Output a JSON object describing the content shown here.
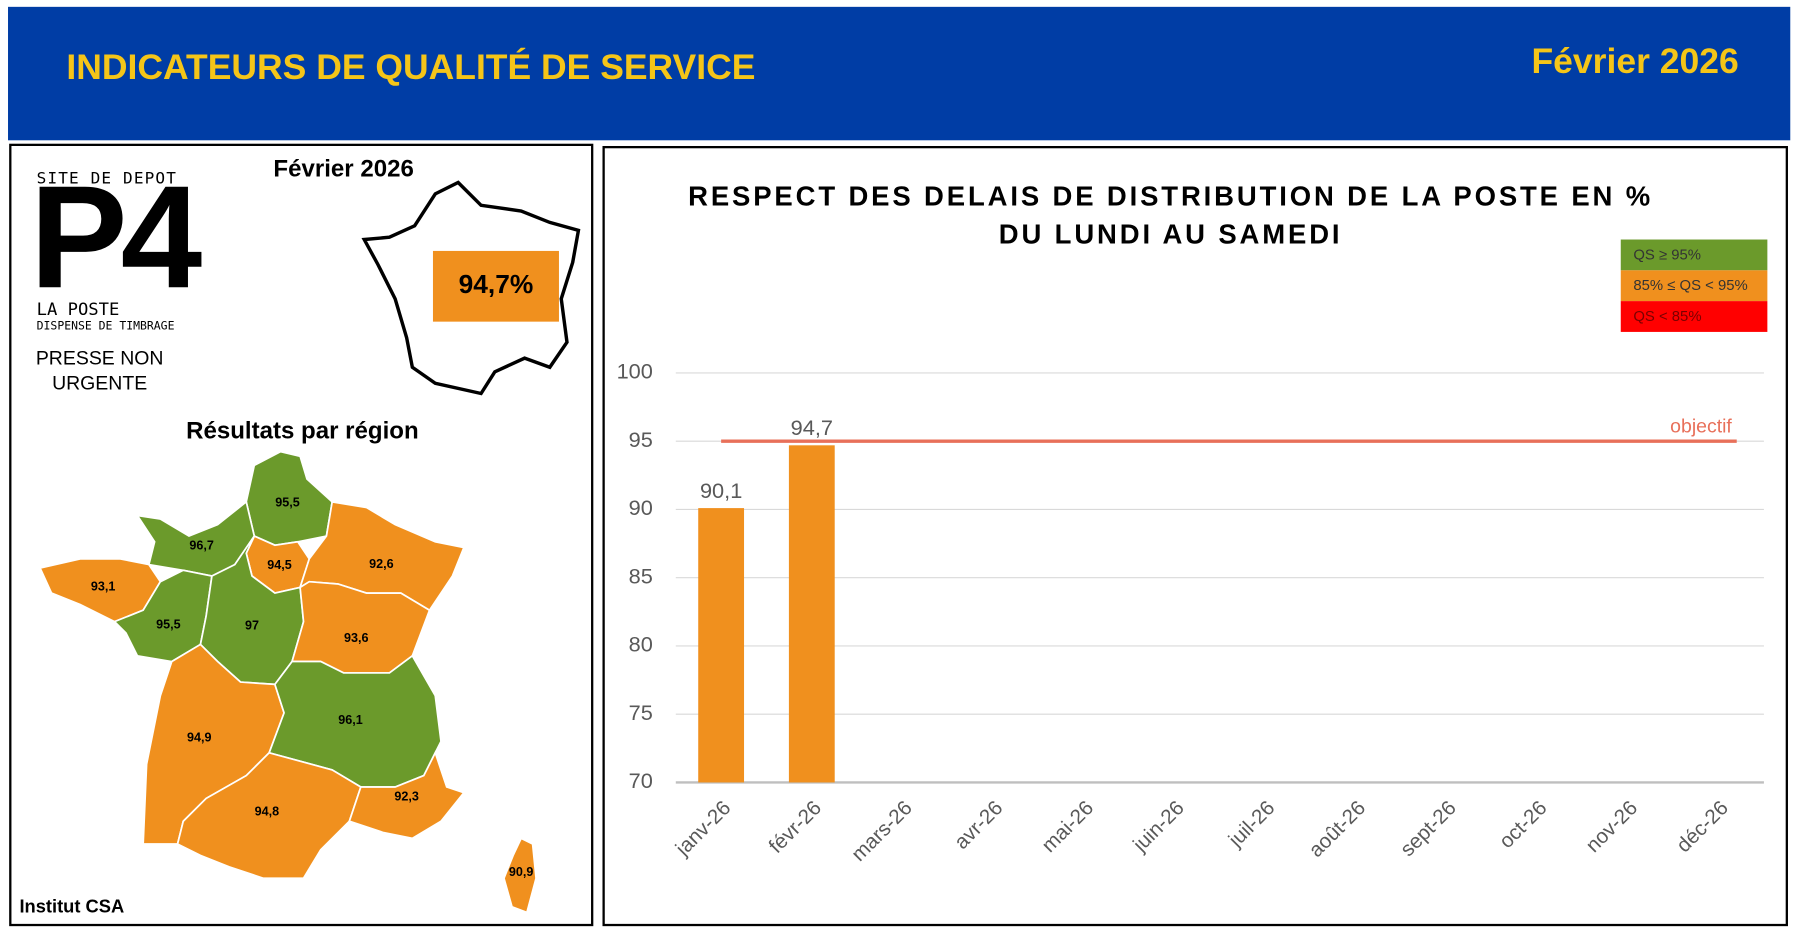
{
  "header": {
    "title": "INDICATEURS DE QUALITÉ DE SERVICE",
    "period": "Février 2026"
  },
  "left_panel": {
    "period": "Février 2026",
    "stamp": {
      "top": "SITE DE DEPOT",
      "code": "P4",
      "brand": "LA POSTE",
      "note": "DISPENSE DE TIMBRAGE"
    },
    "category": [
      "PRESSE NON",
      "URGENTE"
    ],
    "national_value": "94,7%",
    "national_color": "#f0901e",
    "regions_title": "Résultats par région",
    "regions": [
      {
        "label": "95,5",
        "color": "#6b9a2b"
      },
      {
        "label": "96,7",
        "color": "#6b9a2b"
      },
      {
        "label": "93,1",
        "color": "#f0901e"
      },
      {
        "label": "94,5",
        "color": "#f0901e"
      },
      {
        "label": "92,6",
        "color": "#f0901e"
      },
      {
        "label": "95,5",
        "color": "#6b9a2b"
      },
      {
        "label": "97",
        "color": "#6b9a2b"
      },
      {
        "label": "93,6",
        "color": "#f0901e"
      },
      {
        "label": "94,9",
        "color": "#f0901e"
      },
      {
        "label": "96,1",
        "color": "#6b9a2b"
      },
      {
        "label": "94,8",
        "color": "#f0901e"
      },
      {
        "label": "92,3",
        "color": "#f0901e"
      },
      {
        "label": "90,9",
        "color": "#f0901e"
      }
    ],
    "source": "Institut CSA"
  },
  "chart_data": {
    "type": "bar",
    "title": "RESPECT DES DELAIS DE DISTRIBUTION DE LA POSTE EN %",
    "subtitle": "DU LUNDI AU SAMEDI",
    "categories": [
      "janv-26",
      "févr-26",
      "mars-26",
      "avr-26",
      "mai-26",
      "juin-26",
      "juil-26",
      "août-26",
      "sept-26",
      "oct-26",
      "nov-26",
      "déc-26"
    ],
    "values": [
      90.1,
      94.7,
      null,
      null,
      null,
      null,
      null,
      null,
      null,
      null,
      null,
      null
    ],
    "value_labels": [
      "90,1",
      "94,7",
      null,
      null,
      null,
      null,
      null,
      null,
      null,
      null,
      null,
      null
    ],
    "color": "#f0901e",
    "ylim": [
      70,
      100
    ],
    "yticks": [
      70,
      75,
      80,
      85,
      90,
      95,
      100
    ],
    "grid": true,
    "objective": {
      "value": 95,
      "label": "objectif",
      "color": "#e8705a"
    },
    "legend_items": [
      {
        "label": "QS ≥ 95%",
        "color": "#6b9a2b"
      },
      {
        "label": "85% ≤ QS < 95%",
        "color": "#f0901e"
      },
      {
        "label": "QS < 85%",
        "color": "#ff0000"
      }
    ]
  }
}
